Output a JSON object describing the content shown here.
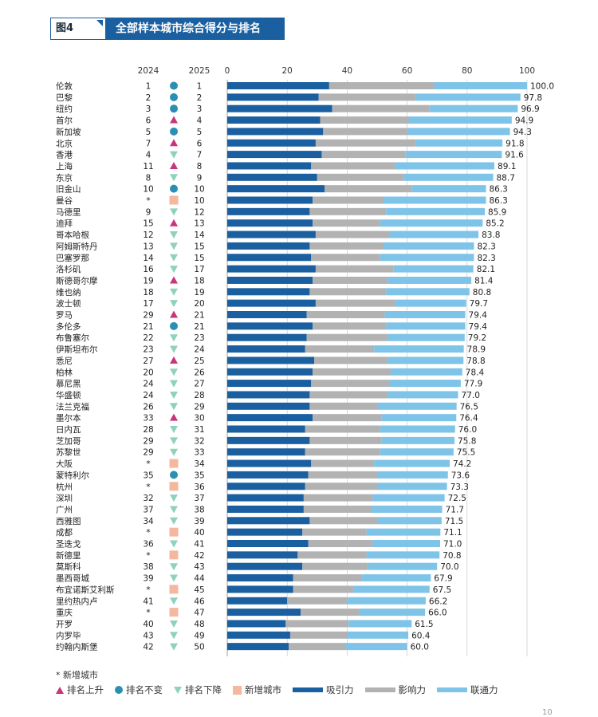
{
  "header": {
    "figure_label": "图4",
    "title": "全部样本城市综合得分与排名"
  },
  "notes": {
    "new_city_note": "* 新增城市"
  },
  "legend": {
    "rank_up": "排名上升",
    "rank_same": "排名不变",
    "rank_down": "排名下降",
    "new_city": "新增城市",
    "attraction": "吸引力",
    "influence": "影响力",
    "connectivity": "联通力"
  },
  "colors": {
    "attraction": "#1a5fa0",
    "influence": "#b2b2b2",
    "connectivity": "#7ec3e8",
    "up": "#c7357d",
    "same": "#2b8fb3",
    "down": "#8fd1bd",
    "new": "#f3b89e"
  },
  "page_number": "10",
  "chart_data": {
    "type": "bar",
    "orientation": "horizontal-stacked",
    "title": "全部样本城市综合得分与排名",
    "col_headers": {
      "rank_2024": "2024",
      "rank_2025": "2025"
    },
    "xlim": [
      0,
      100
    ],
    "xticks": [
      0,
      20,
      40,
      60,
      80,
      100
    ],
    "series_names": [
      "吸引力",
      "影响力",
      "联通力"
    ],
    "rows": [
      {
        "city": "伦敦",
        "r2024": "1",
        "r2025": "1",
        "trend": "same",
        "a": 34,
        "b": 35,
        "c": 31,
        "total": "100.0"
      },
      {
        "city": "巴黎",
        "r2024": "2",
        "r2025": "2",
        "trend": "same",
        "a": 30.5,
        "b": 32.5,
        "c": 34.8,
        "total": "97.8"
      },
      {
        "city": "纽约",
        "r2024": "3",
        "r2025": "3",
        "trend": "same",
        "a": 35,
        "b": 32.5,
        "c": 29.4,
        "total": "96.9"
      },
      {
        "city": "首尔",
        "r2024": "6",
        "r2025": "4",
        "trend": "up",
        "a": 31,
        "b": 29.5,
        "c": 34.4,
        "total": "94.9"
      },
      {
        "city": "新加坡",
        "r2024": "5",
        "r2025": "5",
        "trend": "same",
        "a": 32,
        "b": 28,
        "c": 34.3,
        "total": "94.3"
      },
      {
        "city": "北京",
        "r2024": "7",
        "r2025": "6",
        "trend": "up",
        "a": 29.5,
        "b": 33.5,
        "c": 28.8,
        "total": "91.8"
      },
      {
        "city": "香港",
        "r2024": "4",
        "r2025": "7",
        "trend": "down",
        "a": 31.5,
        "b": 28,
        "c": 32.1,
        "total": "91.6"
      },
      {
        "city": "上海",
        "r2024": "11",
        "r2025": "8",
        "trend": "up",
        "a": 28,
        "b": 28,
        "c": 33.1,
        "total": "89.1"
      },
      {
        "city": "东京",
        "r2024": "8",
        "r2025": "9",
        "trend": "down",
        "a": 30,
        "b": 29,
        "c": 29.7,
        "total": "88.7"
      },
      {
        "city": "旧金山",
        "r2024": "10",
        "r2025": "10",
        "trend": "same",
        "a": 32.5,
        "b": 29,
        "c": 24.8,
        "total": "86.3"
      },
      {
        "city": "曼谷",
        "r2024": "*",
        "r2025": "10",
        "trend": "new",
        "a": 28.5,
        "b": 23.5,
        "c": 34.3,
        "total": "86.3"
      },
      {
        "city": "马德里",
        "r2024": "9",
        "r2025": "12",
        "trend": "down",
        "a": 27.5,
        "b": 25.5,
        "c": 32.9,
        "total": "85.9"
      },
      {
        "city": "迪拜",
        "r2024": "15",
        "r2025": "13",
        "trend": "up",
        "a": 28.5,
        "b": 22.5,
        "c": 34.2,
        "total": "85.2"
      },
      {
        "city": "哥本哈根",
        "r2024": "12",
        "r2025": "14",
        "trend": "down",
        "a": 29.5,
        "b": 24.5,
        "c": 29.8,
        "total": "83.8"
      },
      {
        "city": "阿姆斯特丹",
        "r2024": "13",
        "r2025": "15",
        "trend": "down",
        "a": 27.5,
        "b": 24.5,
        "c": 30.3,
        "total": "82.3"
      },
      {
        "city": "巴塞罗那",
        "r2024": "14",
        "r2025": "15",
        "trend": "down",
        "a": 28,
        "b": 23,
        "c": 31.3,
        "total": "82.3"
      },
      {
        "city": "洛杉矶",
        "r2024": "16",
        "r2025": "17",
        "trend": "down",
        "a": 29.5,
        "b": 26,
        "c": 26.6,
        "total": "82.1"
      },
      {
        "city": "斯德哥尔摩",
        "r2024": "19",
        "r2025": "18",
        "trend": "up",
        "a": 28.5,
        "b": 25,
        "c": 27.9,
        "total": "81.4"
      },
      {
        "city": "维也纳",
        "r2024": "18",
        "r2025": "19",
        "trend": "down",
        "a": 27.5,
        "b": 25.5,
        "c": 27.8,
        "total": "80.8"
      },
      {
        "city": "波士顿",
        "r2024": "17",
        "r2025": "20",
        "trend": "down",
        "a": 29.5,
        "b": 26.5,
        "c": 23.7,
        "total": "79.7"
      },
      {
        "city": "罗马",
        "r2024": "29",
        "r2025": "21",
        "trend": "up",
        "a": 26.5,
        "b": 26,
        "c": 26.9,
        "total": "79.4"
      },
      {
        "city": "多伦多",
        "r2024": "21",
        "r2025": "21",
        "trend": "same",
        "a": 28.5,
        "b": 24.5,
        "c": 26.4,
        "total": "79.4"
      },
      {
        "city": "布鲁塞尔",
        "r2024": "22",
        "r2025": "23",
        "trend": "down",
        "a": 26.5,
        "b": 27,
        "c": 25.7,
        "total": "79.2"
      },
      {
        "city": "伊斯坦布尔",
        "r2024": "23",
        "r2025": "24",
        "trend": "down",
        "a": 26,
        "b": 23,
        "c": 29.9,
        "total": "78.9"
      },
      {
        "city": "悉尼",
        "r2024": "27",
        "r2025": "25",
        "trend": "up",
        "a": 29,
        "b": 24.5,
        "c": 25.3,
        "total": "78.8"
      },
      {
        "city": "柏林",
        "r2024": "20",
        "r2025": "26",
        "trend": "down",
        "a": 28.5,
        "b": 26,
        "c": 23.9,
        "total": "78.4"
      },
      {
        "city": "慕尼黑",
        "r2024": "24",
        "r2025": "27",
        "trend": "down",
        "a": 28,
        "b": 26,
        "c": 23.9,
        "total": "77.9"
      },
      {
        "city": "华盛顿",
        "r2024": "24",
        "r2025": "28",
        "trend": "down",
        "a": 27.5,
        "b": 26,
        "c": 23.5,
        "total": "77.0"
      },
      {
        "city": "法兰克福",
        "r2024": "26",
        "r2025": "29",
        "trend": "down",
        "a": 27.5,
        "b": 22.5,
        "c": 26.5,
        "total": "76.5"
      },
      {
        "city": "墨尔本",
        "r2024": "33",
        "r2025": "30",
        "trend": "up",
        "a": 28.5,
        "b": 23,
        "c": 24.9,
        "total": "76.4"
      },
      {
        "city": "日内瓦",
        "r2024": "28",
        "r2025": "31",
        "trend": "down",
        "a": 26,
        "b": 25,
        "c": 25,
        "total": "76.0"
      },
      {
        "city": "芝加哥",
        "r2024": "29",
        "r2025": "32",
        "trend": "down",
        "a": 27.5,
        "b": 24,
        "c": 24.3,
        "total": "75.8"
      },
      {
        "city": "苏黎世",
        "r2024": "29",
        "r2025": "33",
        "trend": "down",
        "a": 26,
        "b": 25,
        "c": 24.5,
        "total": "75.5"
      },
      {
        "city": "大阪",
        "r2024": "*",
        "r2025": "34",
        "trend": "new",
        "a": 28,
        "b": 21,
        "c": 25.2,
        "total": "74.2"
      },
      {
        "city": "蒙特利尔",
        "r2024": "35",
        "r2025": "35",
        "trend": "same",
        "a": 27,
        "b": 23,
        "c": 23.6,
        "total": "73.6"
      },
      {
        "city": "杭州",
        "r2024": "*",
        "r2025": "36",
        "trend": "new",
        "a": 26,
        "b": 24,
        "c": 23.3,
        "total": "73.3"
      },
      {
        "city": "深圳",
        "r2024": "32",
        "r2025": "37",
        "trend": "down",
        "a": 25.5,
        "b": 23,
        "c": 24,
        "total": "72.5"
      },
      {
        "city": "广州",
        "r2024": "37",
        "r2025": "38",
        "trend": "down",
        "a": 25.5,
        "b": 22.5,
        "c": 23.7,
        "total": "71.7"
      },
      {
        "city": "西雅图",
        "r2024": "34",
        "r2025": "39",
        "trend": "down",
        "a": 27.5,
        "b": 22.5,
        "c": 21.5,
        "total": "71.5"
      },
      {
        "city": "成都",
        "r2024": "*",
        "r2025": "40",
        "trend": "new",
        "a": 25,
        "b": 21.5,
        "c": 24.6,
        "total": "71.1"
      },
      {
        "city": "圣迭戈",
        "r2024": "36",
        "r2025": "41",
        "trend": "down",
        "a": 27,
        "b": 21.5,
        "c": 22.5,
        "total": "71.0"
      },
      {
        "city": "新德里",
        "r2024": "*",
        "r2025": "42",
        "trend": "new",
        "a": 23.5,
        "b": 23,
        "c": 24.3,
        "total": "70.8"
      },
      {
        "city": "莫斯科",
        "r2024": "38",
        "r2025": "43",
        "trend": "down",
        "a": 25,
        "b": 22,
        "c": 23,
        "total": "70.0"
      },
      {
        "city": "墨西哥城",
        "r2024": "39",
        "r2025": "44",
        "trend": "down",
        "a": 22,
        "b": 23,
        "c": 22.9,
        "total": "67.9"
      },
      {
        "city": "布宜诺斯艾利斯",
        "r2024": "*",
        "r2025": "45",
        "trend": "new",
        "a": 22,
        "b": 20,
        "c": 25.5,
        "total": "67.5"
      },
      {
        "city": "里约热内卢",
        "r2024": "41",
        "r2025": "46",
        "trend": "down",
        "a": 20,
        "b": 20,
        "c": 26.2,
        "total": "66.2"
      },
      {
        "city": "重庆",
        "r2024": "*",
        "r2025": "47",
        "trend": "new",
        "a": 24.5,
        "b": 19.5,
        "c": 22,
        "total": "66.0"
      },
      {
        "city": "开罗",
        "r2024": "40",
        "r2025": "48",
        "trend": "down",
        "a": 19.5,
        "b": 21,
        "c": 21,
        "total": "61.5"
      },
      {
        "city": "内罗毕",
        "r2024": "43",
        "r2025": "49",
        "trend": "down",
        "a": 21,
        "b": 19,
        "c": 20.4,
        "total": "60.4"
      },
      {
        "city": "约翰内斯堡",
        "r2024": "42",
        "r2025": "50",
        "trend": "down",
        "a": 20.5,
        "b": 19,
        "c": 20.5,
        "total": "60.0"
      }
    ]
  }
}
